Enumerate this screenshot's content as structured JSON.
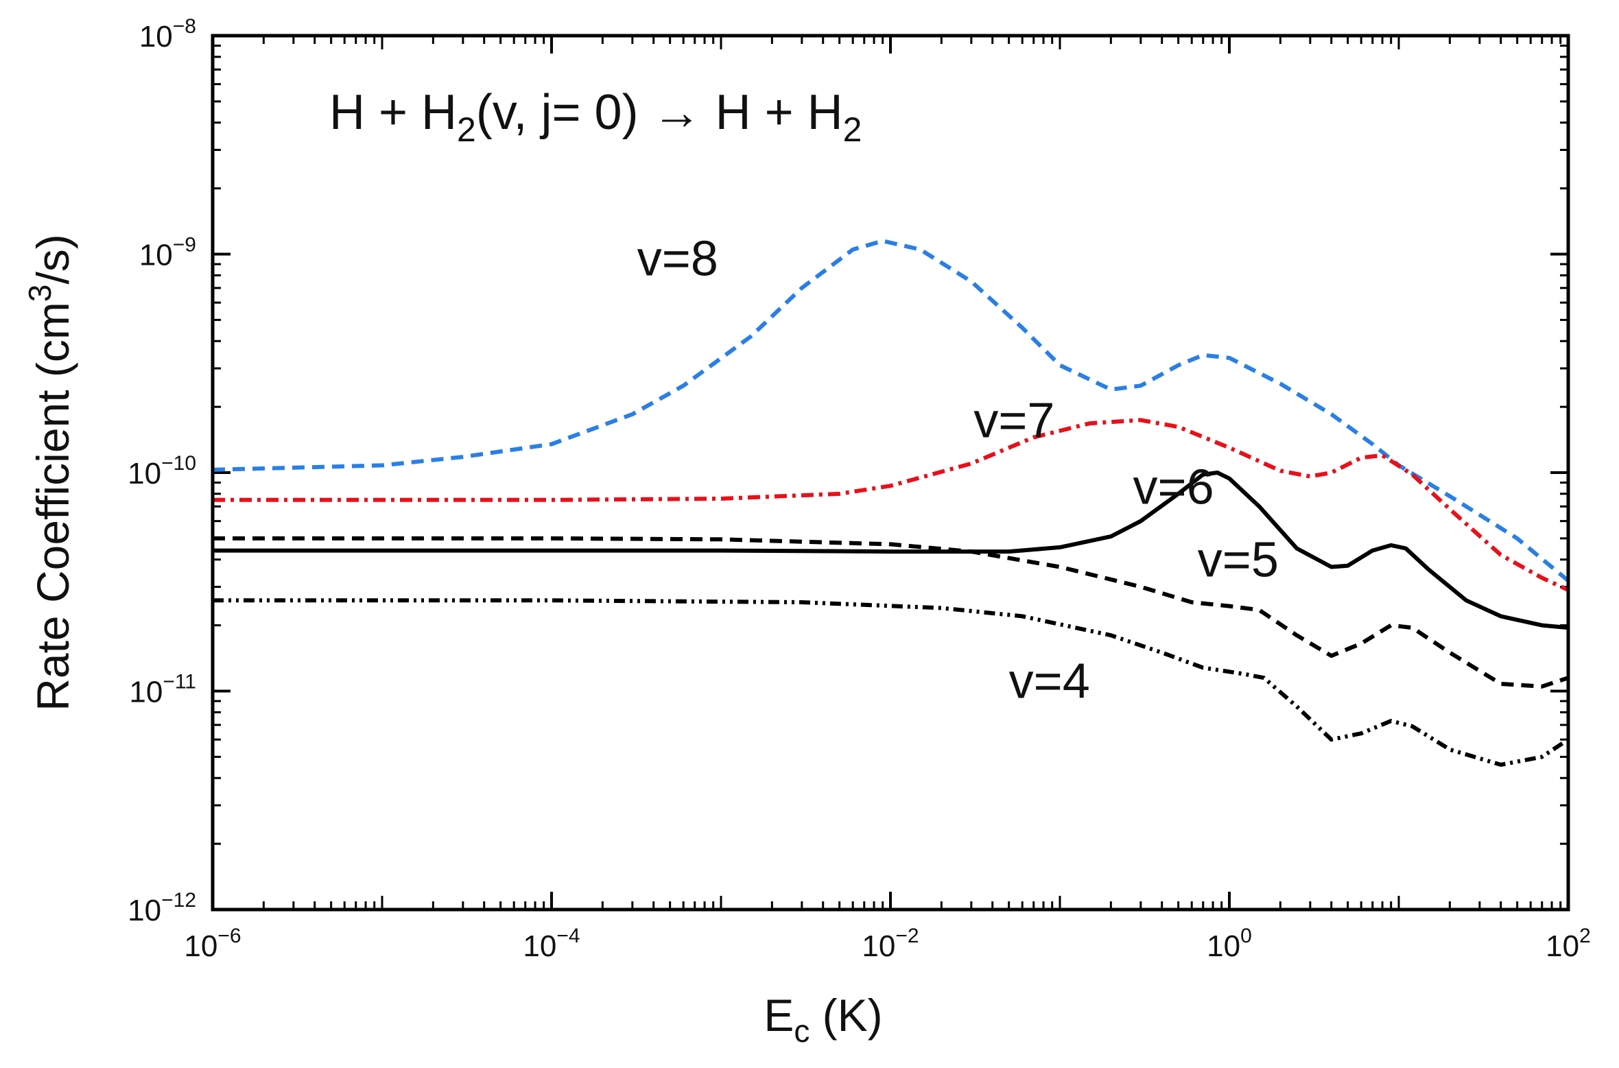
{
  "chart_data": {
    "type": "line",
    "title": {
      "parts": [
        "H + H",
        "2",
        "(v, j= 0)  →  H + H",
        "2"
      ]
    },
    "xlabel": {
      "main": "E",
      "sub": "c",
      "rest": "  (K)"
    },
    "ylabel": {
      "main": "Rate Coefficient  (cm",
      "sup": "3",
      "rest": "/s)"
    },
    "xscale": "log",
    "yscale": "log",
    "xlim": [
      1e-06,
      100
    ],
    "ylim": [
      1e-12,
      1e-08
    ],
    "x_ticks": [
      {
        "base": "10",
        "exp": "−6",
        "value": 1e-06
      },
      {
        "base": "10",
        "exp": "−4",
        "value": 0.0001
      },
      {
        "base": "10",
        "exp": "−2",
        "value": 0.01
      },
      {
        "base": "10",
        "exp": "0",
        "value": 1
      },
      {
        "base": "10",
        "exp": "2",
        "value": 100
      }
    ],
    "y_ticks": [
      {
        "base": "10",
        "exp": "−8",
        "value": 1e-08
      },
      {
        "base": "10",
        "exp": "−9",
        "value": 1e-09
      },
      {
        "base": "10",
        "exp": "−10",
        "value": 1e-10
      },
      {
        "base": "10",
        "exp": "−11",
        "value": 1e-11
      },
      {
        "base": "10",
        "exp": "−12",
        "value": 1e-12
      }
    ],
    "series": [
      {
        "name": "v=8",
        "label": "v=8",
        "color": "#2a7fe6",
        "style": "dashed",
        "label_pos": [
          0.00032,
          8e-10
        ],
        "points": [
          [
            1e-06,
            1.03e-10
          ],
          [
            1e-05,
            1.08e-10
          ],
          [
            3e-05,
            1.18e-10
          ],
          [
            0.0001,
            1.35e-10
          ],
          [
            0.0003,
            1.85e-10
          ],
          [
            0.0006,
            2.5e-10
          ],
          [
            0.0015,
            4.2e-10
          ],
          [
            0.003,
            7e-10
          ],
          [
            0.006,
            1.05e-09
          ],
          [
            0.009,
            1.15e-09
          ],
          [
            0.015,
            1.05e-09
          ],
          [
            0.03,
            7.5e-10
          ],
          [
            0.06,
            4.6e-10
          ],
          [
            0.1,
            3.1e-10
          ],
          [
            0.2,
            2.4e-10
          ],
          [
            0.3,
            2.5e-10
          ],
          [
            0.5,
            3.1e-10
          ],
          [
            0.7,
            3.45e-10
          ],
          [
            1.0,
            3.35e-10
          ],
          [
            2.0,
            2.55e-10
          ],
          [
            4.0,
            1.85e-10
          ],
          [
            7.0,
            1.35e-10
          ],
          [
            10.0,
            1.08e-10
          ],
          [
            20.0,
            7.8e-11
          ],
          [
            50.0,
            5e-11
          ],
          [
            100.0,
            3.2e-11
          ]
        ]
      },
      {
        "name": "v=7",
        "label": "v=7",
        "color": "#e8101a",
        "style": "dashdot",
        "label_pos": [
          0.031,
          1.45e-10
        ],
        "points": [
          [
            1e-06,
            7.5e-11
          ],
          [
            0.0001,
            7.5e-11
          ],
          [
            0.001,
            7.6e-11
          ],
          [
            0.005,
            8e-11
          ],
          [
            0.01,
            8.7e-11
          ],
          [
            0.03,
            1.1e-10
          ],
          [
            0.07,
            1.45e-10
          ],
          [
            0.15,
            1.68e-10
          ],
          [
            0.3,
            1.74e-10
          ],
          [
            0.5,
            1.62e-10
          ],
          [
            1.0,
            1.3e-10
          ],
          [
            2.0,
            1.02e-10
          ],
          [
            3.0,
            9.6e-11
          ],
          [
            4.0,
            1e-10
          ],
          [
            6.0,
            1.17e-10
          ],
          [
            8.0,
            1.2e-10
          ],
          [
            12.0,
            9.8e-11
          ],
          [
            20.0,
            6.8e-11
          ],
          [
            40.0,
            4.2e-11
          ],
          [
            70.0,
            3.3e-11
          ],
          [
            100.0,
            2.9e-11
          ]
        ]
      },
      {
        "name": "v=6",
        "label": "v=6",
        "color": "#000000",
        "style": "solid",
        "label_pos": [
          0.27,
          7.2e-11
        ],
        "points": [
          [
            1e-06,
            4.4e-11
          ],
          [
            0.001,
            4.4e-11
          ],
          [
            0.01,
            4.35e-11
          ],
          [
            0.05,
            4.35e-11
          ],
          [
            0.1,
            4.55e-11
          ],
          [
            0.2,
            5.1e-11
          ],
          [
            0.3,
            6e-11
          ],
          [
            0.5,
            8e-11
          ],
          [
            0.7,
            9.8e-11
          ],
          [
            0.85,
            1e-10
          ],
          [
            1.0,
            9.4e-11
          ],
          [
            1.5,
            7e-11
          ],
          [
            2.5,
            4.5e-11
          ],
          [
            4.0,
            3.7e-11
          ],
          [
            5.0,
            3.75e-11
          ],
          [
            7.0,
            4.4e-11
          ],
          [
            9.0,
            4.65e-11
          ],
          [
            11.0,
            4.5e-11
          ],
          [
            15.0,
            3.6e-11
          ],
          [
            25.0,
            2.6e-11
          ],
          [
            40.0,
            2.2e-11
          ],
          [
            70.0,
            2e-11
          ],
          [
            100.0,
            1.95e-11
          ]
        ]
      },
      {
        "name": "v=5",
        "label": "v=5",
        "color": "#000000",
        "style": "dashed",
        "label_pos": [
          0.65,
          3.35e-11
        ],
        "points": [
          [
            1e-06,
            5e-11
          ],
          [
            0.0001,
            5e-11
          ],
          [
            0.001,
            4.95e-11
          ],
          [
            0.01,
            4.7e-11
          ],
          [
            0.03,
            4.35e-11
          ],
          [
            0.1,
            3.7e-11
          ],
          [
            0.3,
            3e-11
          ],
          [
            0.6,
            2.55e-11
          ],
          [
            1.0,
            2.45e-11
          ],
          [
            1.5,
            2.35e-11
          ],
          [
            2.5,
            1.8e-11
          ],
          [
            4.0,
            1.45e-11
          ],
          [
            6.0,
            1.65e-11
          ],
          [
            9.0,
            2e-11
          ],
          [
            12.0,
            1.95e-11
          ],
          [
            20.0,
            1.5e-11
          ],
          [
            40.0,
            1.08e-11
          ],
          [
            70.0,
            1.05e-11
          ],
          [
            100.0,
            1.15e-11
          ]
        ]
      },
      {
        "name": "v=4",
        "label": "v=4",
        "color": "#000000",
        "style": "dashdotdot",
        "label_pos": [
          0.05,
          9.3e-12
        ],
        "points": [
          [
            1e-06,
            2.6e-11
          ],
          [
            0.0001,
            2.6e-11
          ],
          [
            0.003,
            2.55e-11
          ],
          [
            0.02,
            2.4e-11
          ],
          [
            0.06,
            2.2e-11
          ],
          [
            0.2,
            1.8e-11
          ],
          [
            0.4,
            1.5e-11
          ],
          [
            0.7,
            1.28e-11
          ],
          [
            1.2,
            1.2e-11
          ],
          [
            1.6,
            1.15e-11
          ],
          [
            2.5,
            8.5e-12
          ],
          [
            4.0,
            6e-12
          ],
          [
            6.0,
            6.4e-12
          ],
          [
            9.0,
            7.3e-12
          ],
          [
            12.0,
            6.9e-12
          ],
          [
            20.0,
            5.4e-12
          ],
          [
            40.0,
            4.6e-12
          ],
          [
            70.0,
            5e-12
          ],
          [
            100.0,
            6e-12
          ]
        ]
      }
    ]
  }
}
